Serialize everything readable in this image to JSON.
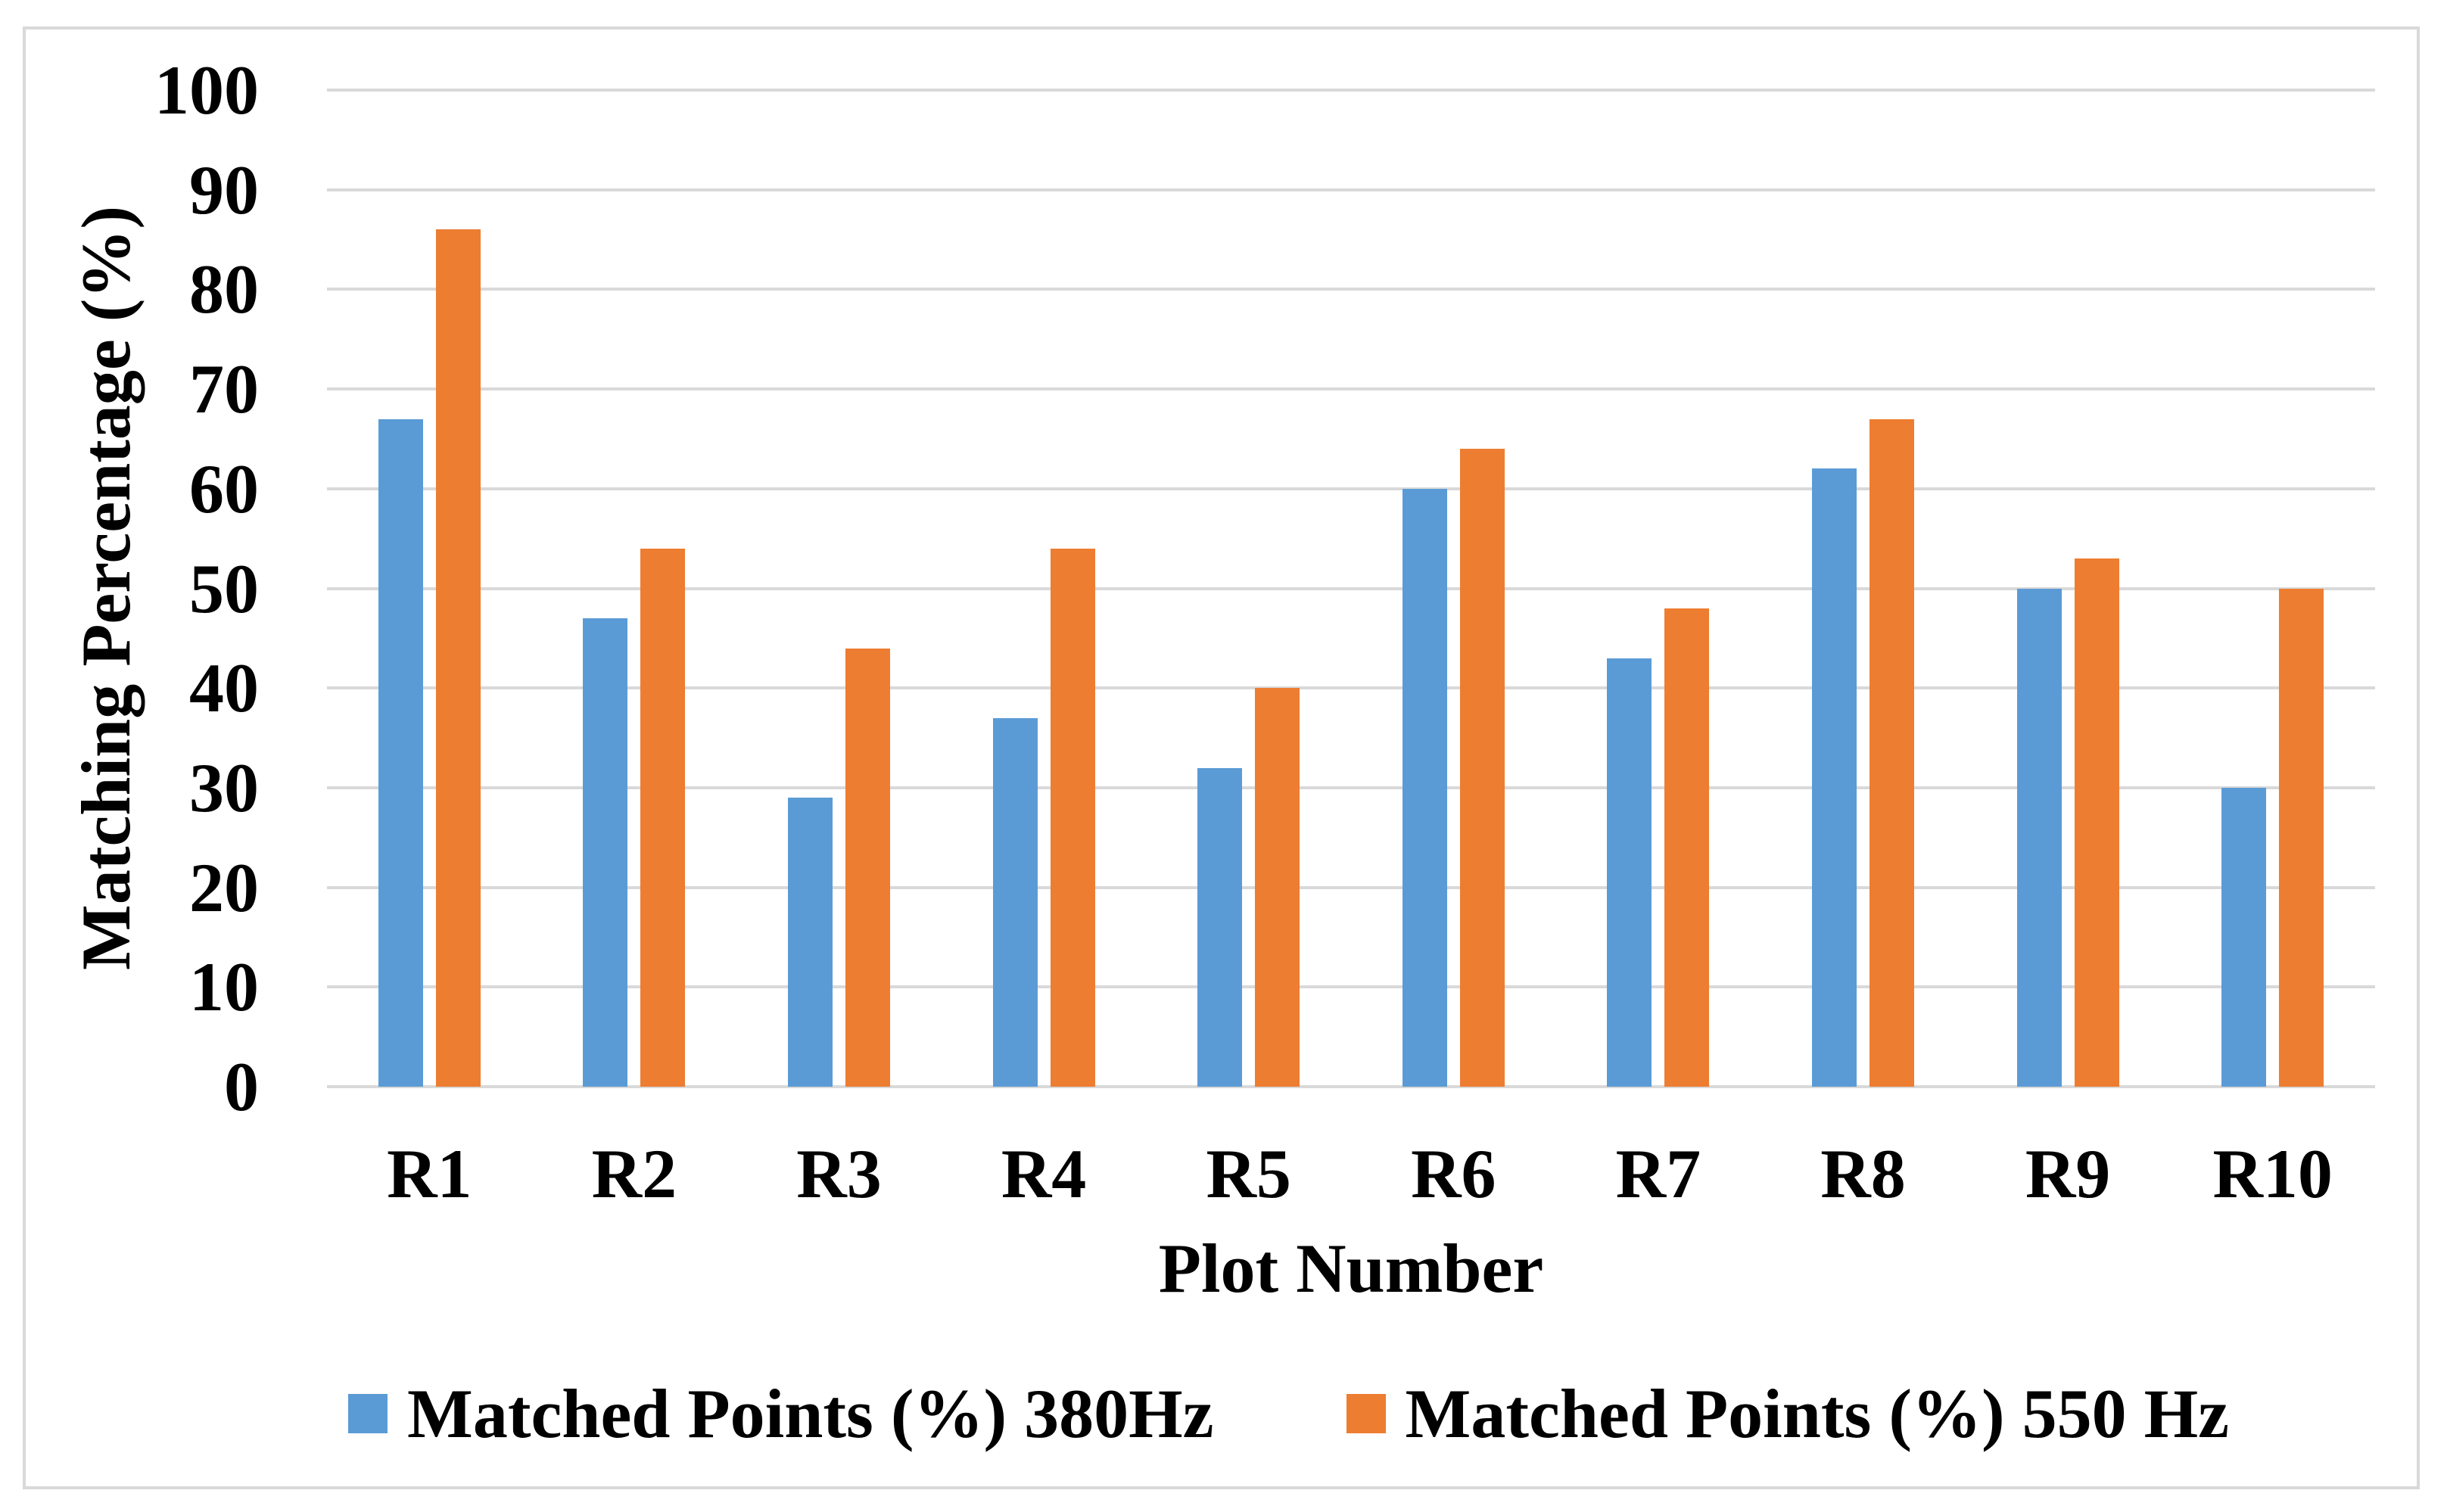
{
  "figure": {
    "y_axis_title": "Matching Percentage (%)",
    "x_axis_title": "Plot Number"
  },
  "colors": {
    "series_380hz": "#5B9BD5",
    "series_550hz": "#ED7D31",
    "gridline": "#D9D9D9",
    "frame_border": "#D9D9D9",
    "text": "#000000",
    "background": "#FFFFFF"
  },
  "chart_data": {
    "type": "bar",
    "title": "",
    "categories": [
      "R1",
      "R2",
      "R3",
      "R4",
      "R5",
      "R6",
      "R7",
      "R8",
      "R9",
      "R10"
    ],
    "series": [
      {
        "name": "Matched Points (%) 380Hz",
        "color": "#5B9BD5",
        "values": [
          67,
          47,
          29,
          37,
          32,
          60,
          43,
          62,
          50,
          30
        ]
      },
      {
        "name": "Matched Points (%) 550 Hz",
        "color": "#ED7D31",
        "values": [
          86,
          54,
          44,
          54,
          40,
          64,
          48,
          67,
          53,
          50
        ]
      }
    ],
    "xlabel": "Plot Number",
    "ylabel": "Matching Percentage (%)",
    "ylim": [
      0,
      100
    ],
    "ytick_step": 10,
    "yticks": [
      0,
      10,
      20,
      30,
      40,
      50,
      60,
      70,
      80,
      90,
      100
    ],
    "grid": "horizontal",
    "legend_position": "bottom"
  }
}
